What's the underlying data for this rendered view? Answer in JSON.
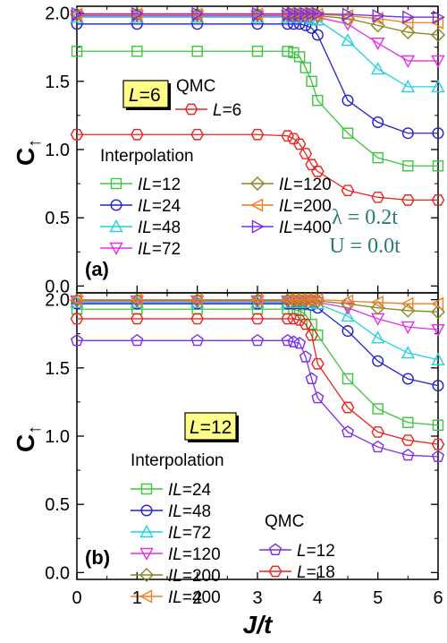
{
  "chart_data": [
    {
      "type": "line",
      "panel": "(a)",
      "x_axis": {
        "title": "J/t",
        "range": [
          0,
          6
        ],
        "ticks": [
          "0",
          "1",
          "2",
          "3",
          "4",
          "5",
          "6"
        ]
      },
      "y_axis": {
        "title": "C↑",
        "range": [
          -0.05,
          2.05
        ],
        "ticks": [
          "0.0",
          "0.5",
          "1.0",
          "1.5",
          "2.0"
        ]
      },
      "size_badge": "L=6",
      "qmc_header": "QMC",
      "interp_header": "Interpolation",
      "params": [
        "λ = 0.2t",
        "U = 0.0t"
      ],
      "legend_layout": "interp-two-columns",
      "x": [
        0,
        1,
        2,
        3,
        3.5,
        3.6,
        3.7,
        3.8,
        3.9,
        4.0,
        4.5,
        5.0,
        5.5,
        6.0
      ],
      "series": [
        {
          "name": "L=6",
          "group": "qmc",
          "color": "#e8251f",
          "marker": "hexagon",
          "values": [
            1.11,
            1.11,
            1.11,
            1.11,
            1.1,
            1.08,
            1.04,
            0.97,
            0.89,
            0.84,
            0.7,
            0.65,
            0.63,
            0.63
          ]
        },
        {
          "name": "IL=12",
          "group": "interp",
          "color": "#3ec43e",
          "marker": "square",
          "values": [
            1.72,
            1.72,
            1.72,
            1.72,
            1.72,
            1.71,
            1.68,
            1.6,
            1.5,
            1.36,
            1.12,
            0.94,
            0.88,
            0.88
          ]
        },
        {
          "name": "IL=24",
          "group": "interp",
          "color": "#2222cc",
          "marker": "circle",
          "values": [
            1.92,
            1.92,
            1.92,
            1.92,
            1.92,
            1.92,
            1.92,
            1.91,
            1.89,
            1.84,
            1.36,
            1.2,
            1.12,
            1.12
          ]
        },
        {
          "name": "IL=48",
          "group": "interp",
          "color": "#22d0e0",
          "marker": "triangle-up",
          "values": [
            1.97,
            1.97,
            1.97,
            1.97,
            1.97,
            1.97,
            1.97,
            1.97,
            1.96,
            1.95,
            1.8,
            1.59,
            1.46,
            1.46
          ]
        },
        {
          "name": "IL=72",
          "group": "interp",
          "color": "#e52ee5",
          "marker": "triangle-down",
          "values": [
            1.98,
            1.98,
            1.98,
            1.98,
            1.98,
            1.98,
            1.98,
            1.98,
            1.98,
            1.97,
            1.92,
            1.78,
            1.65,
            1.65
          ]
        },
        {
          "name": "IL=120",
          "group": "interp",
          "color": "#86861e",
          "marker": "diamond",
          "values": [
            1.99,
            1.99,
            1.99,
            1.99,
            1.99,
            1.99,
            1.99,
            1.99,
            1.99,
            1.98,
            1.96,
            1.91,
            1.86,
            1.84
          ]
        },
        {
          "name": "IL=200",
          "group": "interp",
          "color": "#f07d20",
          "marker": "triangle-left",
          "values": [
            1.99,
            1.99,
            1.99,
            1.99,
            1.99,
            1.99,
            1.99,
            1.99,
            1.99,
            1.99,
            1.98,
            1.96,
            1.93,
            1.93
          ]
        },
        {
          "name": "IL=400",
          "group": "interp",
          "color": "#7d2ee8",
          "marker": "triangle-right",
          "values": [
            1.995,
            1.995,
            1.995,
            1.995,
            1.995,
            1.995,
            1.995,
            1.995,
            1.995,
            1.995,
            1.99,
            1.98,
            1.97,
            1.97
          ]
        }
      ]
    },
    {
      "type": "line",
      "panel": "(b)",
      "x_axis": {
        "title": "J/t",
        "range": [
          0,
          6
        ],
        "ticks": [
          "0",
          "1",
          "2",
          "3",
          "4",
          "5",
          "6"
        ]
      },
      "y_axis": {
        "title": "C↑",
        "range": [
          -0.05,
          2.05
        ],
        "ticks": [
          "0.0",
          "0.5",
          "1.0",
          "1.5",
          "2.0"
        ]
      },
      "size_badge": "L=12",
      "qmc_header": "QMC",
      "interp_header": "Interpolation",
      "legend_layout": "interp-one-column",
      "x": [
        0,
        1,
        2,
        3,
        3.5,
        3.6,
        3.7,
        3.8,
        3.9,
        4.0,
        4.5,
        5.0,
        5.5,
        6.0
      ],
      "series": [
        {
          "name": "IL=24",
          "group": "interp",
          "color": "#3ec43e",
          "marker": "square",
          "values": [
            1.93,
            1.93,
            1.93,
            1.93,
            1.93,
            1.93,
            1.92,
            1.89,
            1.82,
            1.74,
            1.42,
            1.2,
            1.1,
            1.08
          ]
        },
        {
          "name": "IL=48",
          "group": "interp",
          "color": "#2222cc",
          "marker": "circle",
          "values": [
            1.97,
            1.97,
            1.97,
            1.97,
            1.97,
            1.97,
            1.97,
            1.97,
            1.96,
            1.94,
            1.77,
            1.55,
            1.42,
            1.37
          ]
        },
        {
          "name": "IL=72",
          "group": "interp",
          "color": "#22d0e0",
          "marker": "triangle-up",
          "values": [
            1.98,
            1.98,
            1.98,
            1.98,
            1.98,
            1.98,
            1.98,
            1.98,
            1.98,
            1.97,
            1.88,
            1.72,
            1.61,
            1.56
          ]
        },
        {
          "name": "IL=120",
          "group": "interp",
          "color": "#e52ee5",
          "marker": "triangle-down",
          "values": [
            1.99,
            1.99,
            1.99,
            1.99,
            1.99,
            1.99,
            1.99,
            1.99,
            1.99,
            1.98,
            1.94,
            1.86,
            1.8,
            1.78
          ]
        },
        {
          "name": "IL=200",
          "group": "interp",
          "color": "#86861e",
          "marker": "diamond",
          "values": [
            1.995,
            1.995,
            1.995,
            1.995,
            1.995,
            1.995,
            1.995,
            1.995,
            1.995,
            1.99,
            1.97,
            1.94,
            1.92,
            1.91
          ]
        },
        {
          "name": "IL=400",
          "group": "interp",
          "color": "#f07d20",
          "marker": "triangle-left",
          "values": [
            2.0,
            2.0,
            2.0,
            2.0,
            2.0,
            2.0,
            2.0,
            2.0,
            2.0,
            2.0,
            1.99,
            1.98,
            1.97,
            1.97
          ]
        },
        {
          "name": "L=12",
          "group": "qmc",
          "color": "#7d2ee8",
          "marker": "pentagon",
          "values": [
            1.7,
            1.7,
            1.7,
            1.7,
            1.7,
            1.69,
            1.68,
            1.58,
            1.42,
            1.28,
            1.03,
            0.92,
            0.86,
            0.85
          ]
        },
        {
          "name": "L=18",
          "group": "qmc",
          "color": "#e8251f",
          "marker": "hexagon",
          "values": [
            1.86,
            1.86,
            1.86,
            1.86,
            1.86,
            1.86,
            1.85,
            1.82,
            1.74,
            1.53,
            1.21,
            1.03,
            0.97,
            0.94
          ]
        }
      ]
    }
  ]
}
